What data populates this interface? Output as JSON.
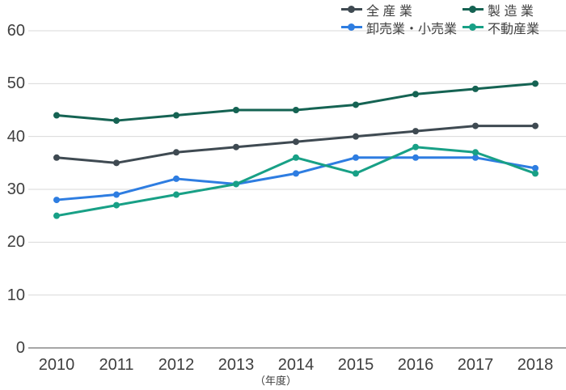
{
  "chart_data": {
    "type": "line",
    "title": "",
    "xlabel": "（年度）",
    "ylabel": "",
    "categories": [
      "2010",
      "2011",
      "2012",
      "2013",
      "2014",
      "2015",
      "2016",
      "2017",
      "2018"
    ],
    "series": [
      {
        "name": "全産業",
        "legend_label": "全 産 業",
        "color": "#3f4a52",
        "values": [
          36,
          35,
          37,
          38,
          39,
          40,
          41,
          42,
          42
        ]
      },
      {
        "name": "製造業",
        "legend_label": "製 造 業",
        "color": "#156353",
        "values": [
          44,
          43,
          44,
          45,
          45,
          46,
          48,
          49,
          50
        ]
      },
      {
        "name": "卸売業・小売業",
        "legend_label": "卸売業・小売業",
        "color": "#2e7de1",
        "values": [
          28,
          29,
          32,
          31,
          33,
          36,
          36,
          36,
          34
        ]
      },
      {
        "name": "不動産業",
        "legend_label": "不動産業",
        "color": "#18a086",
        "values": [
          25,
          27,
          29,
          31,
          36,
          33,
          38,
          37,
          33
        ]
      }
    ],
    "ylim": [
      0,
      60
    ],
    "yticks": [
      0,
      10,
      20,
      30,
      40,
      50,
      60
    ],
    "grid": true,
    "legend_position": "top-right",
    "colors": {
      "gridline": "#d9d9d9",
      "axis_line": "#a6a6a6",
      "tick_text": "#3f3f3f",
      "legend_text": "#404040"
    }
  }
}
